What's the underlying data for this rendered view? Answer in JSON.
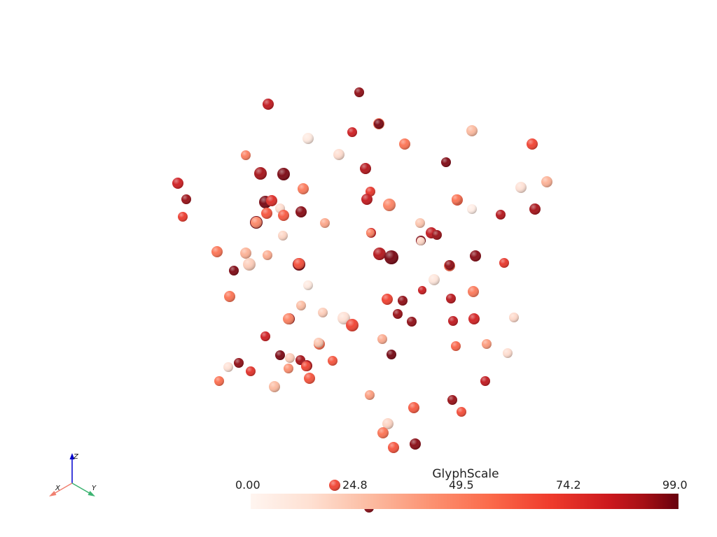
{
  "scalar_bar": {
    "title": "GlyphScale",
    "ticks": [
      "0.00",
      "24.8",
      "49.5",
      "74.2",
      "99.0"
    ],
    "range": [
      0,
      99
    ],
    "colormap": [
      "#fff5f0",
      "#fcbba1",
      "#fc9272",
      "#fb6a4a",
      "#ef3b2c",
      "#cb181d",
      "#a50f15",
      "#67000d"
    ]
  },
  "axes_widget": {
    "x_label": "X",
    "y_label": "Y",
    "z_label": "Z",
    "x_color": "#f08070",
    "y_color": "#3cb371",
    "z_color": "#0000cd"
  },
  "glyphs": [
    {
      "v": 90
    },
    {
      "v": 75
    },
    {
      "v": 42
    },
    {
      "v": 3
    },
    {
      "v": 70
    },
    {
      "v": 40
    },
    {
      "v": 15
    },
    {
      "v": 55
    },
    {
      "v": 36
    },
    {
      "v": 6
    },
    {
      "v": 80
    },
    {
      "v": 85
    },
    {
      "v": 95
    },
    {
      "v": 94
    },
    {
      "v": 70
    },
    {
      "v": 38
    },
    {
      "v": 60
    },
    {
      "v": 88
    },
    {
      "v": 34
    },
    {
      "v": 74
    },
    {
      "v": 46
    },
    {
      "v": 5
    },
    {
      "v": 18
    },
    {
      "v": 2
    },
    {
      "v": 80
    },
    {
      "v": 85
    },
    {
      "v": 96
    },
    {
      "v": 64
    },
    {
      "v": 6
    },
    {
      "v": 50
    },
    {
      "v": 48
    },
    {
      "v": 97
    },
    {
      "v": 92
    },
    {
      "v": 58
    },
    {
      "v": 22
    },
    {
      "v": 12
    },
    {
      "v": 75
    },
    {
      "v": 88
    },
    {
      "v": 68
    },
    {
      "v": 8
    },
    {
      "v": 94
    },
    {
      "v": 40
    },
    {
      "v": 18
    },
    {
      "v": 20
    },
    {
      "v": 95
    },
    {
      "v": 10
    },
    {
      "v": 94
    },
    {
      "v": 80
    },
    {
      "v": 96
    },
    {
      "v": 92
    },
    {
      "v": 45
    },
    {
      "v": 60
    },
    {
      "v": 3
    },
    {
      "v": 4
    },
    {
      "v": 12
    },
    {
      "v": 38
    },
    {
      "v": 40
    },
    {
      "v": 78
    },
    {
      "v": 56
    },
    {
      "v": 90
    },
    {
      "v": 14
    },
    {
      "v": 10
    },
    {
      "v": 88
    },
    {
      "v": 5
    },
    {
      "v": 55
    },
    {
      "v": 88
    },
    {
      "v": 90
    },
    {
      "v": 75
    },
    {
      "v": 68
    },
    {
      "v": 7
    },
    {
      "v": 70
    },
    {
      "v": 42
    },
    {
      "v": 20
    },
    {
      "v": 26
    },
    {
      "v": 45
    },
    {
      "v": 97
    },
    {
      "v": 6
    },
    {
      "v": 95
    },
    {
      "v": 10
    },
    {
      "v": 50
    },
    {
      "v": 85
    },
    {
      "v": 82
    },
    {
      "v": 90
    },
    {
      "v": 5
    },
    {
      "v": 30
    },
    {
      "v": 62
    },
    {
      "v": 50
    },
    {
      "v": 42
    },
    {
      "v": 15
    },
    {
      "v": 75
    },
    {
      "v": 25
    },
    {
      "v": 48
    },
    {
      "v": 88
    },
    {
      "v": 52
    },
    {
      "v": 8
    },
    {
      "v": 40
    },
    {
      "v": 50
    },
    {
      "v": 92
    },
    {
      "v": 55
    },
    {
      "v": 92
    },
    {
      "v": 35
    },
    {
      "v": 12
    },
    {
      "v": 55
    },
    {
      "v": 90
    },
    {
      "v": 72
    },
    {
      "v": 8
    },
    {
      "v": 35
    },
    {
      "v": 32
    },
    {
      "v": 52
    },
    {
      "v": 95
    },
    {
      "v": 40
    }
  ]
}
